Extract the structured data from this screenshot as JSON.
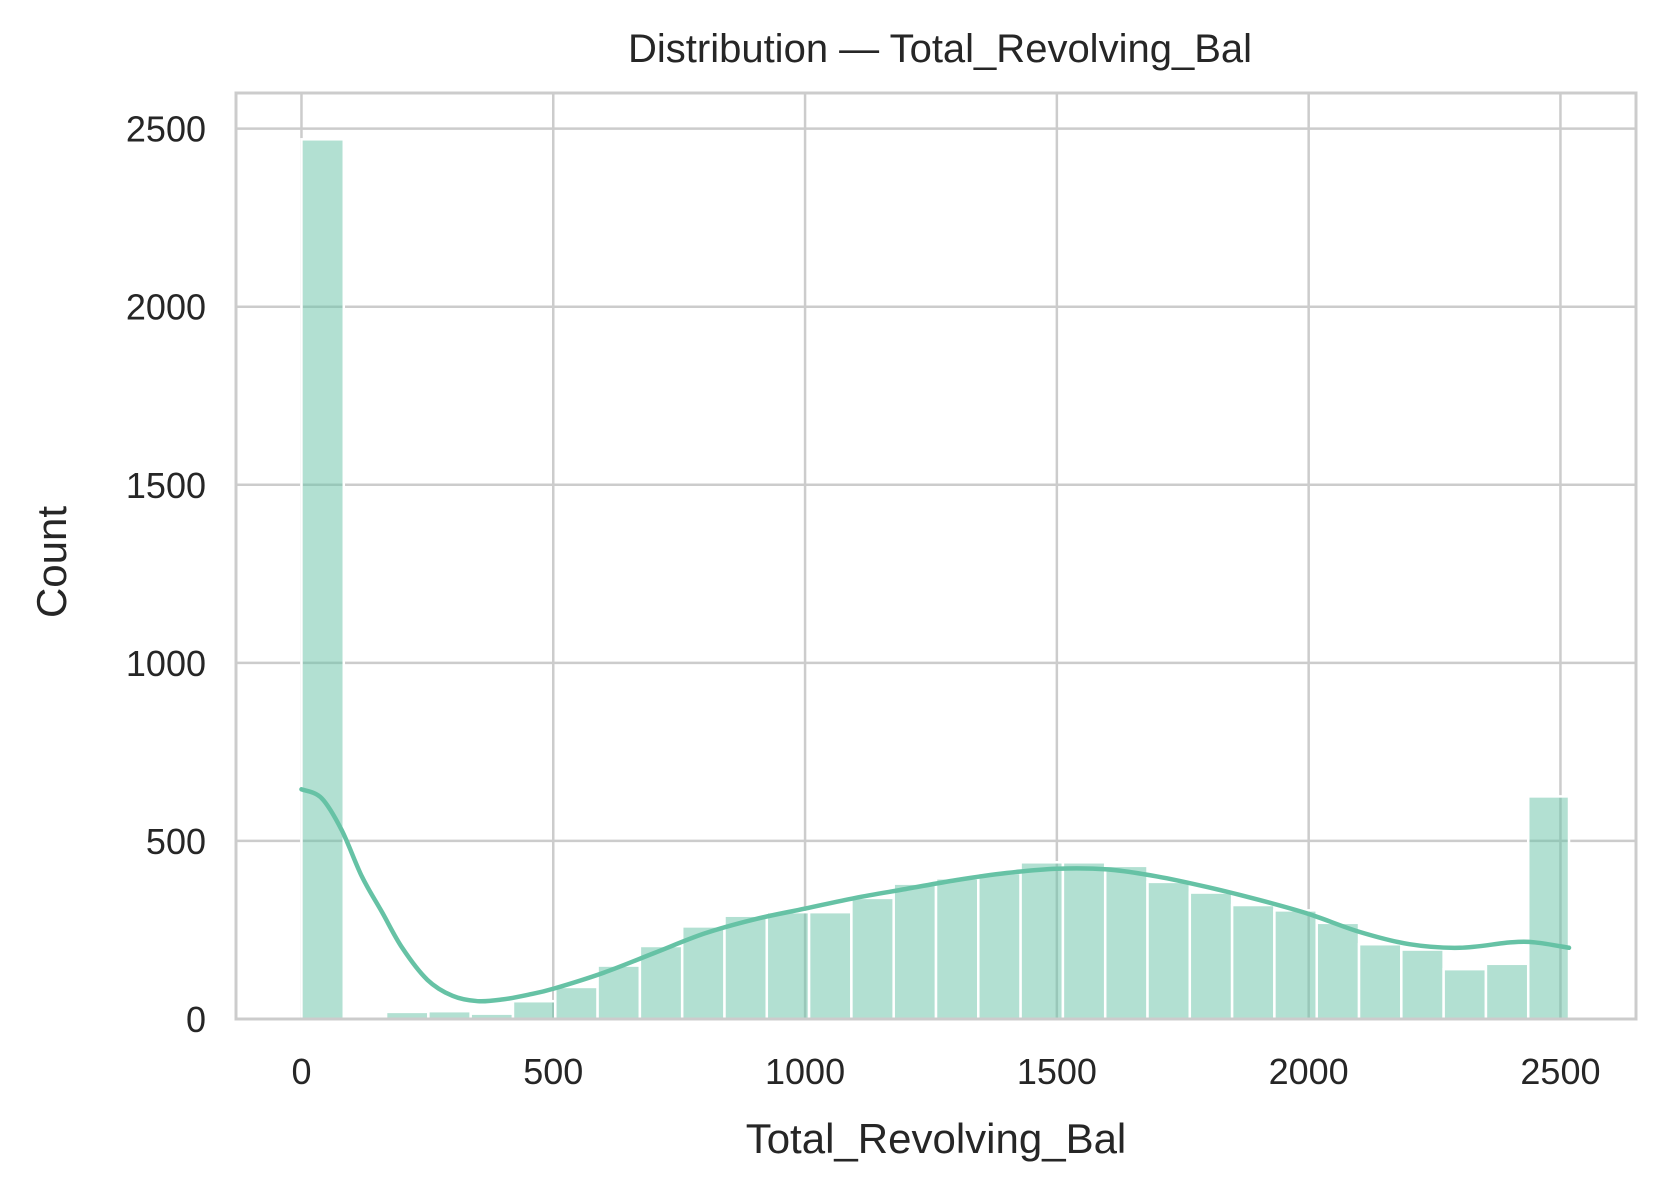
{
  "chart_data": {
    "type": "bar",
    "title": "Distribution — Total_Revolving_Bal",
    "xlabel": "Total_Revolving_Bal",
    "ylabel": "Count",
    "xlim": [
      -130,
      2650
    ],
    "ylim": [
      0,
      2600
    ],
    "x_ticks": [
      0,
      500,
      1000,
      1500,
      2000,
      2500
    ],
    "y_ticks": [
      0,
      500,
      1000,
      1500,
      2000,
      2500
    ],
    "bin_edges": [
      0,
      84,
      168,
      252,
      336,
      420,
      504,
      588,
      672,
      756,
      840,
      924,
      1008,
      1092,
      1176,
      1260,
      1344,
      1428,
      1512,
      1596,
      1680,
      1764,
      1848,
      1932,
      2016,
      2100,
      2184,
      2268,
      2352,
      2436,
      2517
    ],
    "values": [
      2470,
      0,
      20,
      22,
      15,
      50,
      90,
      150,
      205,
      260,
      290,
      300,
      300,
      340,
      380,
      395,
      410,
      440,
      440,
      430,
      385,
      355,
      320,
      305,
      270,
      210,
      195,
      140,
      155,
      625
    ],
    "kde": {
      "x": [
        0,
        40,
        80,
        120,
        160,
        200,
        250,
        300,
        350,
        400,
        450,
        500,
        600,
        700,
        800,
        900,
        1000,
        1100,
        1200,
        1300,
        1400,
        1500,
        1600,
        1700,
        1800,
        1900,
        2000,
        2100,
        2200,
        2300,
        2400,
        2450,
        2517
      ],
      "y": [
        645,
        620,
        530,
        400,
        300,
        200,
        110,
        65,
        50,
        55,
        68,
        85,
        130,
        185,
        240,
        280,
        310,
        340,
        365,
        390,
        410,
        422,
        420,
        400,
        370,
        335,
        295,
        245,
        210,
        200,
        215,
        215,
        200
      ]
    },
    "grid": true,
    "series_color": "#66c2a5"
  }
}
